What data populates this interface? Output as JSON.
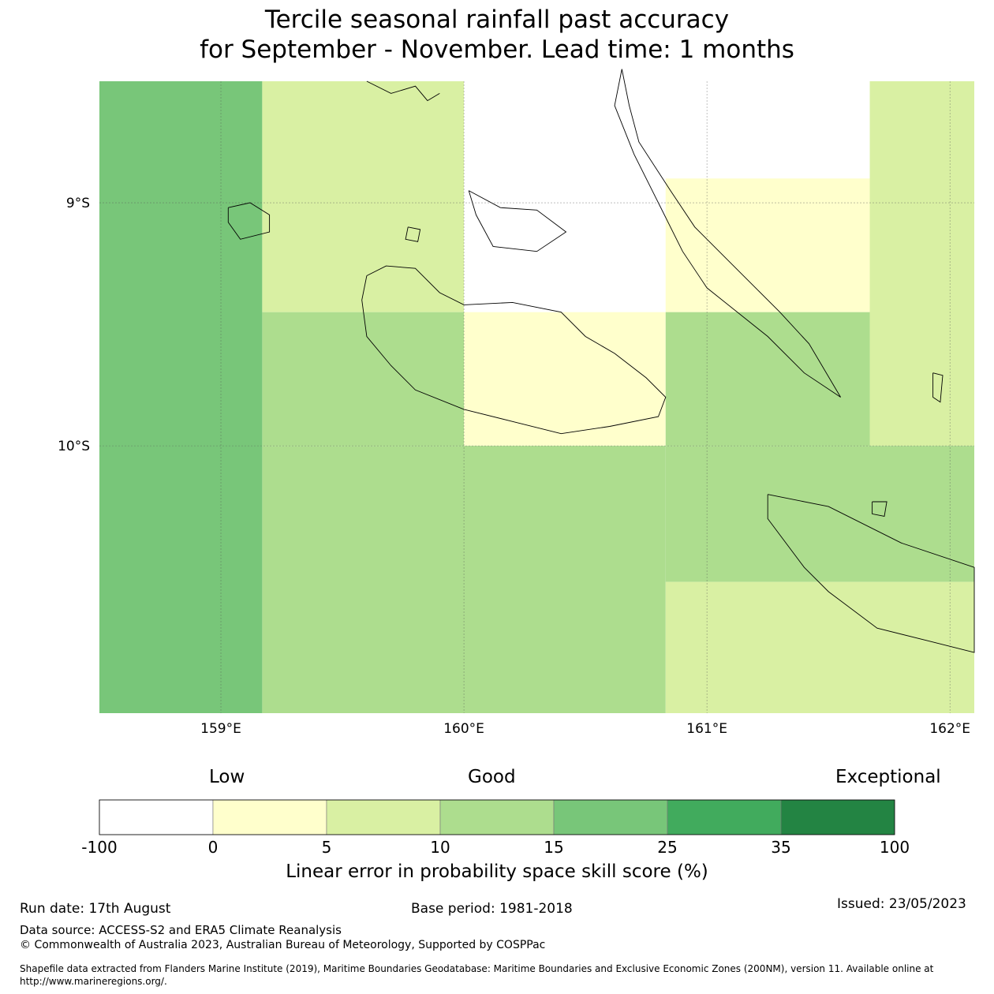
{
  "title_line1": "Tercile seasonal rainfall past accuracy",
  "title_line2": "for September - November. Lead time: 1 months",
  "map": {
    "lon_range": [
      158.5,
      162.1
    ],
    "lat_range": [
      -11.1,
      -8.5
    ],
    "lon_ticks": [
      {
        "value": 159,
        "label": "159°E"
      },
      {
        "value": 160,
        "label": "160°E"
      },
      {
        "value": 161,
        "label": "161°E"
      },
      {
        "value": 162,
        "label": "162°E"
      }
    ],
    "lat_ticks": [
      {
        "value": -9,
        "label": "9°S"
      },
      {
        "value": -10,
        "label": "10°S"
      }
    ],
    "grid": true,
    "cells": [
      {
        "lon": [
          158.5,
          159.17
        ],
        "lat": [
          -11.1,
          -8.5
        ],
        "category": 4
      },
      {
        "lon": [
          159.17,
          160.0
        ],
        "lat": [
          -9.45,
          -8.5
        ],
        "category": 2
      },
      {
        "lon": [
          160.0,
          160.83
        ],
        "lat": [
          -9.45,
          -8.5
        ],
        "category": 0
      },
      {
        "lon": [
          160.83,
          161.67
        ],
        "lat": [
          -8.9,
          -8.5
        ],
        "category": 0
      },
      {
        "lon": [
          160.83,
          161.67
        ],
        "lat": [
          -9.45,
          -8.9
        ],
        "category": 1
      },
      {
        "lon": [
          161.67,
          162.1
        ],
        "lat": [
          -10.0,
          -8.5
        ],
        "category": 2
      },
      {
        "lon": [
          159.17,
          160.0
        ],
        "lat": [
          -10.0,
          -9.45
        ],
        "category": 3
      },
      {
        "lon": [
          160.0,
          160.83
        ],
        "lat": [
          -10.0,
          -9.45
        ],
        "category": 1
      },
      {
        "lon": [
          160.83,
          161.67
        ],
        "lat": [
          -10.0,
          -9.45
        ],
        "category": 3
      },
      {
        "lon": [
          159.17,
          160.83
        ],
        "lat": [
          -11.1,
          -10.0
        ],
        "category": 3
      },
      {
        "lon": [
          160.83,
          162.1
        ],
        "lat": [
          -10.56,
          -10.0
        ],
        "category": 3
      },
      {
        "lon": [
          160.83,
          162.1
        ],
        "lat": [
          -11.1,
          -10.56
        ],
        "category": 2
      }
    ],
    "coastlines": [
      {
        "name": "guadalcanal",
        "points": [
          [
            159.6,
            -9.3
          ],
          [
            159.68,
            -9.26
          ],
          [
            159.8,
            -9.27
          ],
          [
            159.9,
            -9.37
          ],
          [
            160.0,
            -9.42
          ],
          [
            160.2,
            -9.41
          ],
          [
            160.4,
            -9.45
          ],
          [
            160.5,
            -9.55
          ],
          [
            160.62,
            -9.62
          ],
          [
            160.75,
            -9.72
          ],
          [
            160.83,
            -9.8
          ],
          [
            160.8,
            -9.88
          ],
          [
            160.6,
            -9.92
          ],
          [
            160.4,
            -9.95
          ],
          [
            160.2,
            -9.9
          ],
          [
            160.0,
            -9.85
          ],
          [
            159.8,
            -9.77
          ],
          [
            159.7,
            -9.67
          ],
          [
            159.6,
            -9.55
          ],
          [
            159.58,
            -9.4
          ],
          [
            159.6,
            -9.3
          ]
        ]
      },
      {
        "name": "malaita",
        "points": [
          [
            160.65,
            -8.45
          ],
          [
            160.68,
            -8.6
          ],
          [
            160.72,
            -8.75
          ],
          [
            160.85,
            -8.95
          ],
          [
            160.95,
            -9.1
          ],
          [
            161.1,
            -9.25
          ],
          [
            161.3,
            -9.45
          ],
          [
            161.42,
            -9.58
          ],
          [
            161.55,
            -9.8
          ],
          [
            161.4,
            -9.7
          ],
          [
            161.25,
            -9.55
          ],
          [
            161.0,
            -9.35
          ],
          [
            160.9,
            -9.2
          ],
          [
            160.8,
            -9.0
          ],
          [
            160.7,
            -8.8
          ],
          [
            160.62,
            -8.6
          ],
          [
            160.65,
            -8.45
          ]
        ]
      },
      {
        "name": "makira",
        "points": [
          [
            161.25,
            -10.2
          ],
          [
            161.5,
            -10.25
          ],
          [
            161.8,
            -10.4
          ],
          [
            162.1,
            -10.5
          ],
          [
            162.1,
            -10.85
          ],
          [
            161.9,
            -10.8
          ],
          [
            161.7,
            -10.75
          ],
          [
            161.5,
            -10.6
          ],
          [
            161.4,
            -10.5
          ],
          [
            161.25,
            -10.3
          ],
          [
            161.25,
            -10.2
          ]
        ]
      },
      {
        "name": "florida-islands",
        "points": [
          [
            160.02,
            -8.95
          ],
          [
            160.15,
            -9.02
          ],
          [
            160.3,
            -9.03
          ],
          [
            160.42,
            -9.12
          ],
          [
            160.3,
            -9.2
          ],
          [
            160.12,
            -9.18
          ],
          [
            160.05,
            -9.05
          ],
          [
            160.02,
            -8.95
          ]
        ]
      },
      {
        "name": "russell-islands",
        "points": [
          [
            159.03,
            -9.02
          ],
          [
            159.12,
            -9.0
          ],
          [
            159.2,
            -9.05
          ],
          [
            159.2,
            -9.12
          ],
          [
            159.08,
            -9.15
          ],
          [
            159.03,
            -9.08
          ],
          [
            159.03,
            -9.02
          ]
        ]
      },
      {
        "name": "savo",
        "points": [
          [
            159.77,
            -9.1
          ],
          [
            159.82,
            -9.11
          ],
          [
            159.81,
            -9.16
          ],
          [
            159.76,
            -9.15
          ],
          [
            159.77,
            -9.1
          ]
        ]
      },
      {
        "name": "ulawa",
        "points": [
          [
            161.93,
            -9.7
          ],
          [
            161.97,
            -9.71
          ],
          [
            161.96,
            -9.82
          ],
          [
            161.93,
            -9.8
          ],
          [
            161.93,
            -9.7
          ]
        ]
      },
      {
        "name": "ugi",
        "points": [
          [
            161.68,
            -10.23
          ],
          [
            161.74,
            -10.23
          ],
          [
            161.73,
            -10.29
          ],
          [
            161.68,
            -10.28
          ],
          [
            161.68,
            -10.23
          ]
        ]
      },
      {
        "name": "north-coast-islands",
        "points": [
          [
            159.6,
            -8.5
          ],
          [
            159.7,
            -8.55
          ],
          [
            159.8,
            -8.52
          ],
          [
            159.85,
            -8.58
          ],
          [
            159.9,
            -8.55
          ]
        ]
      }
    ]
  },
  "colorbar": {
    "category_labels": {
      "low": "Low",
      "good": "Good",
      "exceptional": "Exceptional"
    },
    "bins": [
      {
        "from": "-100",
        "to": "0",
        "color": "#ffffff"
      },
      {
        "from": "0",
        "to": "5",
        "color": "#ffffcc"
      },
      {
        "from": "5",
        "to": "10",
        "color": "#d9f0a3"
      },
      {
        "from": "10",
        "to": "15",
        "color": "#addd8e"
      },
      {
        "from": "15",
        "to": "25",
        "color": "#78c679"
      },
      {
        "from": "25",
        "to": "35",
        "color": "#41ab5d"
      },
      {
        "from": "35",
        "to": "100",
        "color": "#238443"
      }
    ],
    "tick_labels": [
      "-100",
      "0",
      "5",
      "10",
      "15",
      "25",
      "35",
      "100"
    ],
    "label": "Linear error in probability space skill score (%)"
  },
  "footer": {
    "run_date": "Run date: 17th August",
    "base_period": "Base period: 1981-2018",
    "issued": "Issued: 23/05/2023",
    "data_source": "Data source: ACCESS-S2 and ERA5 Climate Reanalysis",
    "copyright": "© Commonwealth of Australia 2023, Australian Bureau of Meteorology, Supported by COSPPac",
    "shapefile": "Shapefile data extracted from Flanders Marine Institute (2019), Maritime Boundaries Geodatabase: Maritime Boundaries and Exclusive Economic Zones (200NM), version 11. Available online at http://www.marineregions.org/."
  }
}
